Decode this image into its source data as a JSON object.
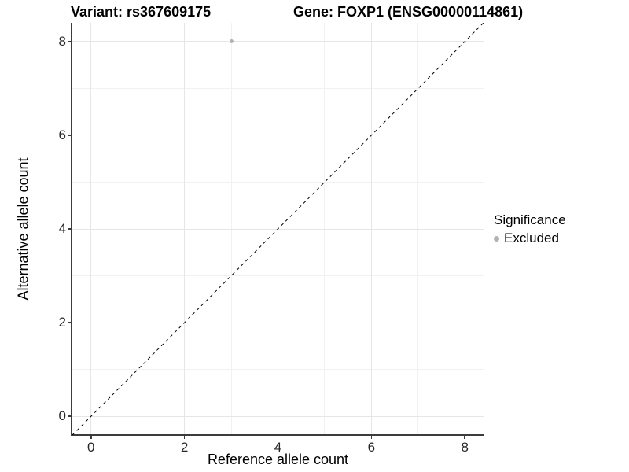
{
  "chart_data": {
    "type": "scatter",
    "titles": {
      "left": "Variant: rs367609175",
      "right": "Gene: FOXP1 (ENSG00000114861)"
    },
    "xlabel": "Reference allele count",
    "ylabel": "Alternative allele count",
    "xlim": [
      -0.4,
      8.4
    ],
    "ylim": [
      -0.4,
      8.4
    ],
    "x_ticks": [
      0,
      2,
      4,
      6,
      8
    ],
    "x_minor_ticks": [
      1,
      3,
      5,
      7
    ],
    "y_ticks": [
      0,
      2,
      4,
      6,
      8
    ],
    "y_minor_ticks": [
      1,
      3,
      5,
      7
    ],
    "grid": "major and minor gridlines on white background",
    "series": [
      {
        "name": "Excluded",
        "marker": "circle",
        "color": "#b3b3b3",
        "points": [
          {
            "x": 3,
            "y": 8
          }
        ]
      }
    ],
    "reference_line": {
      "kind": "identity y = x",
      "style": "dashed",
      "color": "#000000",
      "x": [
        -0.4,
        8.4
      ],
      "y": [
        -0.4,
        8.4
      ]
    },
    "legend": {
      "title": "Significance",
      "position": "right",
      "entries": [
        {
          "label": "Excluded",
          "marker": "circle",
          "color": "#b3b3b3"
        }
      ]
    }
  },
  "theme": {
    "background": "#ffffff",
    "grid_major_color": "#e6e6e6",
    "grid_minor_color": "#f1f1f1",
    "axis_line_color": "#3c3c3c",
    "tick_label_color": "#262626",
    "title_color": "#000000"
  }
}
